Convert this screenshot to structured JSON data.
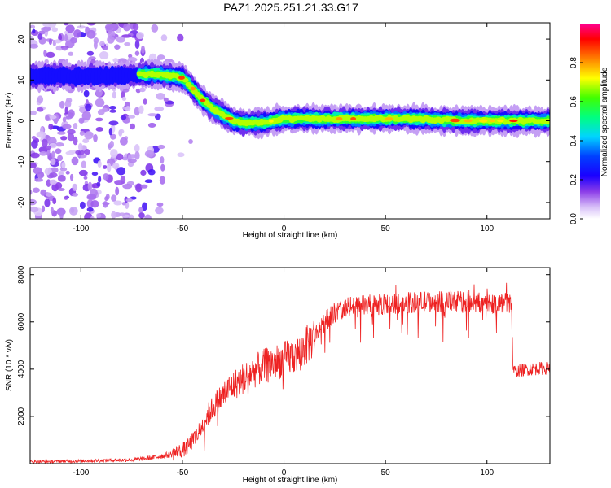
{
  "title": "PAZ1.2025.251.21.33.G17",
  "chart_data": [
    {
      "type": "heatmap",
      "title": "PAZ1.2025.251.21.33.G17",
      "xlabel": "Height of straight line (km)",
      "ylabel": "Frequency (Hz)",
      "xlim": [
        -125,
        131
      ],
      "ylim": [
        -24,
        24
      ],
      "xticks": [
        -100,
        -50,
        0,
        50,
        100
      ],
      "yticks": [
        -20,
        -10,
        0,
        10,
        20
      ],
      "colorbar": {
        "label": "Normalized spectral amplitude",
        "range": [
          0,
          1
        ],
        "ticks": [
          "0.0",
          "0.2",
          "0.4",
          "0.6",
          "0.8"
        ],
        "colormap": [
          "#ffffff",
          "#c9a8f5",
          "#6a1fd8",
          "#0000ff",
          "#00d0ff",
          "#00ff00",
          "#ffff00",
          "#ff8000",
          "#ff0000",
          "#ff00a0"
        ]
      },
      "ridge": {
        "description_points_km": [
          -125,
          -80,
          -65,
          -55,
          -50,
          -45,
          -40,
          -35,
          -30,
          -25,
          -20,
          -15,
          -10,
          -5,
          0,
          10,
          30,
          60,
          90,
          113,
          131
        ],
        "frequency_hz": [
          11,
          11,
          11.5,
          11,
          10.5,
          8,
          5,
          3,
          1.5,
          0,
          -0.5,
          -0.5,
          -0.5,
          0,
          0.5,
          0.5,
          0.5,
          0.5,
          0,
          0,
          0
        ]
      },
      "noise_region_km": [
        -125,
        -55
      ]
    },
    {
      "type": "line",
      "xlabel": "Height of straight line (km)",
      "ylabel": "SNR (10 * v/v)",
      "xlim": [
        -125,
        131
      ],
      "ylim": [
        0,
        8300
      ],
      "xticks": [
        -100,
        -50,
        0,
        50,
        100
      ],
      "yticks": [
        2000,
        4000,
        6000,
        8000
      ],
      "color": "#ee2222",
      "series": [
        {
          "x": [
            -125,
            -100,
            -75,
            -65,
            -55,
            -48,
            -42,
            -38,
            -33,
            -28,
            -22,
            -15,
            -8,
            0,
            8,
            15,
            20,
            25,
            30,
            40,
            50,
            60,
            70,
            80,
            90,
            100,
            105,
            110,
            112,
            113,
            120,
            131
          ],
          "values": [
            80,
            110,
            160,
            250,
            400,
            650,
            1300,
            2000,
            2600,
            3100,
            3500,
            3900,
            4200,
            4400,
            4700,
            5400,
            6000,
            6400,
            6600,
            6700,
            6750,
            6800,
            6850,
            6850,
            6850,
            6800,
            6800,
            6800,
            6750,
            3900,
            4000,
            4050
          ]
        }
      ]
    }
  ]
}
